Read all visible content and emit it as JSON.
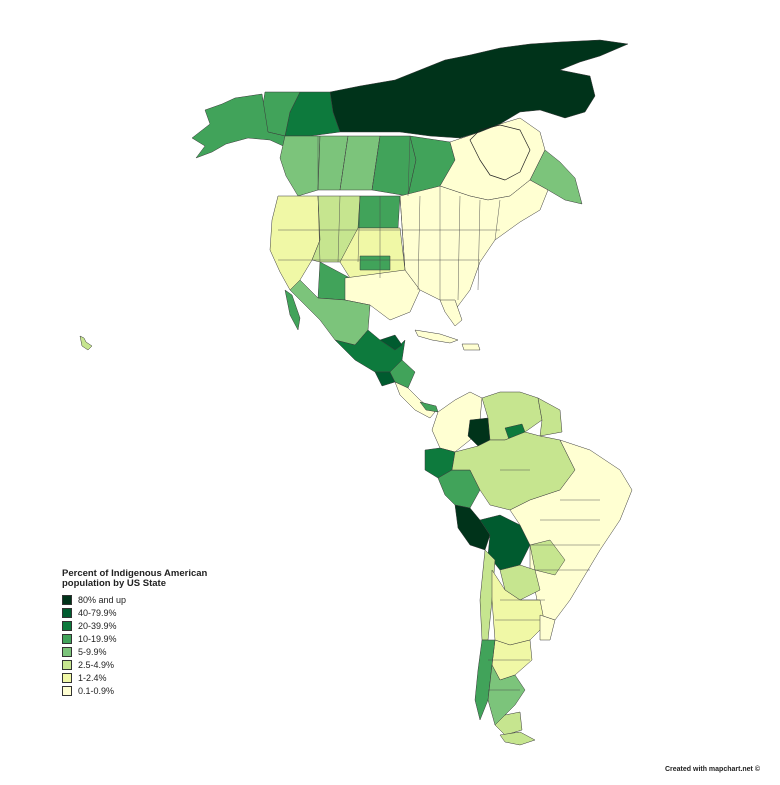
{
  "legend": {
    "title": "Percent of Indigenous American population by US State",
    "items": [
      {
        "label": "80% and up",
        "color": "#00331a"
      },
      {
        "label": "40-79.9%",
        "color": "#005b2f"
      },
      {
        "label": "20-39.9%",
        "color": "#0d7a3d"
      },
      {
        "label": "10-19.9%",
        "color": "#41a35a"
      },
      {
        "label": "5-9.9%",
        "color": "#7cc47b"
      },
      {
        "label": "2.5-4.9%",
        "color": "#c6e58f"
      },
      {
        "label": "1-2.4%",
        "color": "#f0f8a6"
      },
      {
        "label": "0.1-0.9%",
        "color": "#ffffd2"
      }
    ]
  },
  "credit": "Created with mapchart.net ©"
}
